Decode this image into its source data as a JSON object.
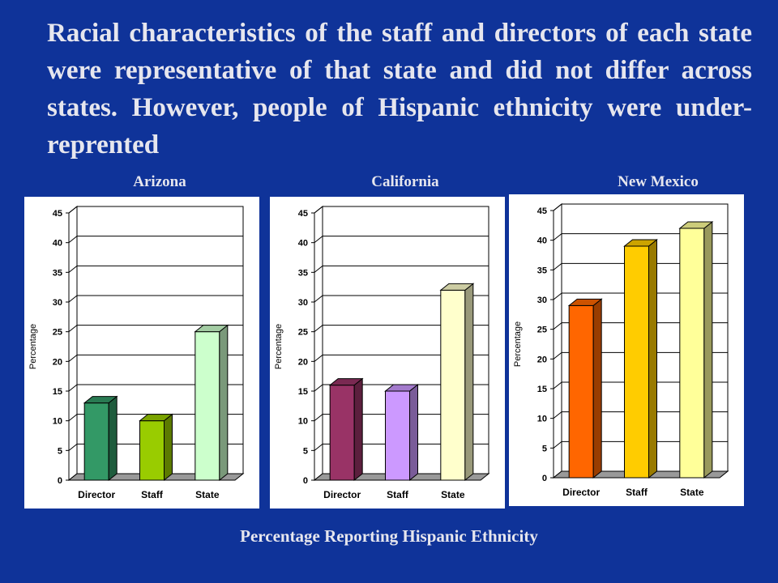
{
  "headline": "Racial characteristics of the staff and directors of each state were representative of that state and did not differ across states.  However, people of Hispanic ethnicity were under-reprented",
  "footer_title": "Percentage Reporting Hispanic Ethnicity",
  "chart_data": [
    {
      "type": "bar",
      "title": "Arizona",
      "ylabel": "Percentage",
      "categories": [
        "Director",
        "Staff",
        "State"
      ],
      "values": [
        13,
        10,
        25
      ],
      "colors": [
        "#339966",
        "#99cc00",
        "#ccffcc"
      ],
      "ylim": [
        0,
        45
      ],
      "yticks": [
        0,
        5,
        10,
        15,
        20,
        25,
        30,
        35,
        40,
        45
      ],
      "grid": true
    },
    {
      "type": "bar",
      "title": "California",
      "ylabel": "Percentage",
      "categories": [
        "Director",
        "Staff",
        "State"
      ],
      "values": [
        16,
        15,
        32
      ],
      "colors": [
        "#993366",
        "#cc99ff",
        "#ffffcc"
      ],
      "ylim": [
        0,
        45
      ],
      "yticks": [
        0,
        5,
        10,
        15,
        20,
        25,
        30,
        35,
        40,
        45
      ],
      "grid": true
    },
    {
      "type": "bar",
      "title": "New Mexico",
      "ylabel": "Percentage",
      "categories": [
        "Director",
        "Staff",
        "State"
      ],
      "values": [
        29,
        39,
        42
      ],
      "colors": [
        "#ff6600",
        "#ffcc00",
        "#ffff99"
      ],
      "ylim": [
        0,
        45
      ],
      "yticks": [
        0,
        5,
        10,
        15,
        20,
        25,
        30,
        35,
        40,
        45
      ],
      "grid": true
    }
  ]
}
